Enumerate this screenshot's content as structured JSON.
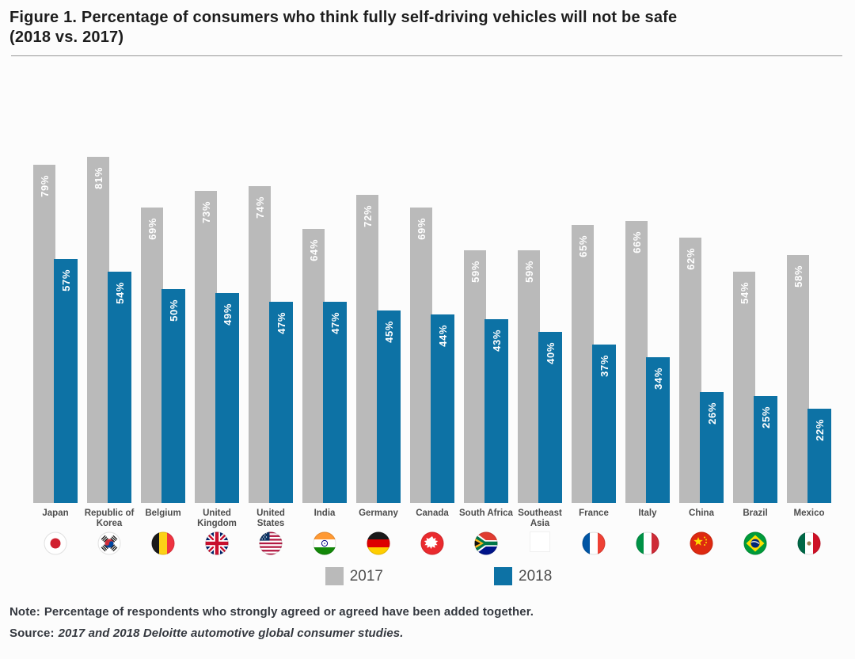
{
  "page": {
    "title_line1": "Figure 1. Percentage of consumers who think fully self-driving vehicles will not be safe",
    "title_line2": "(2018 vs. 2017)",
    "note_label": "Note:",
    "note_text": "Percentage of respondents who strongly agreed or agreed have been added together.",
    "source_label": "Source:",
    "source_text": "2017 and 2018 Deloitte automotive global consumer studies."
  },
  "chart_data": {
    "type": "bar",
    "title": "Percentage of consumers who think fully self-driving vehicles will not be safe (2018 vs. 2017)",
    "categories": [
      "Japan",
      "Republic of Korea",
      "Belgium",
      "United Kingdom",
      "United States",
      "India",
      "Germany",
      "Canada",
      "South Africa",
      "Southeast Asia",
      "France",
      "Italy",
      "China",
      "Brazil",
      "Mexico"
    ],
    "category_lines": [
      [
        "Japan"
      ],
      [
        "Republic of",
        "Korea"
      ],
      [
        "Belgium"
      ],
      [
        "United",
        "Kingdom"
      ],
      [
        "United",
        "States"
      ],
      [
        "India"
      ],
      [
        "Germany"
      ],
      [
        "Canada"
      ],
      [
        "South Africa"
      ],
      [
        "Southeast",
        "Asia"
      ],
      [
        "France"
      ],
      [
        "Italy"
      ],
      [
        "China"
      ],
      [
        "Brazil"
      ],
      [
        "Mexico"
      ]
    ],
    "flags": [
      "japan",
      "south-korea",
      "belgium",
      "united-kingdom",
      "united-states",
      "india",
      "germany",
      "canada",
      "south-africa",
      "none",
      "france",
      "italy",
      "china",
      "brazil",
      "mexico"
    ],
    "series": [
      {
        "name": "2017",
        "color": "#bababa",
        "values": [
          79,
          81,
          69,
          73,
          74,
          64,
          72,
          69,
          59,
          59,
          65,
          66,
          62,
          54,
          58
        ]
      },
      {
        "name": "2018",
        "color": "#0d72a5",
        "values": [
          57,
          54,
          50,
          49,
          47,
          47,
          45,
          44,
          43,
          40,
          37,
          34,
          26,
          25,
          22
        ]
      }
    ],
    "value_suffix": "%",
    "ylim": [
      0,
      100
    ],
    "grid": false,
    "legend_position": "bottom",
    "bar_label_color": "#ffffff"
  }
}
